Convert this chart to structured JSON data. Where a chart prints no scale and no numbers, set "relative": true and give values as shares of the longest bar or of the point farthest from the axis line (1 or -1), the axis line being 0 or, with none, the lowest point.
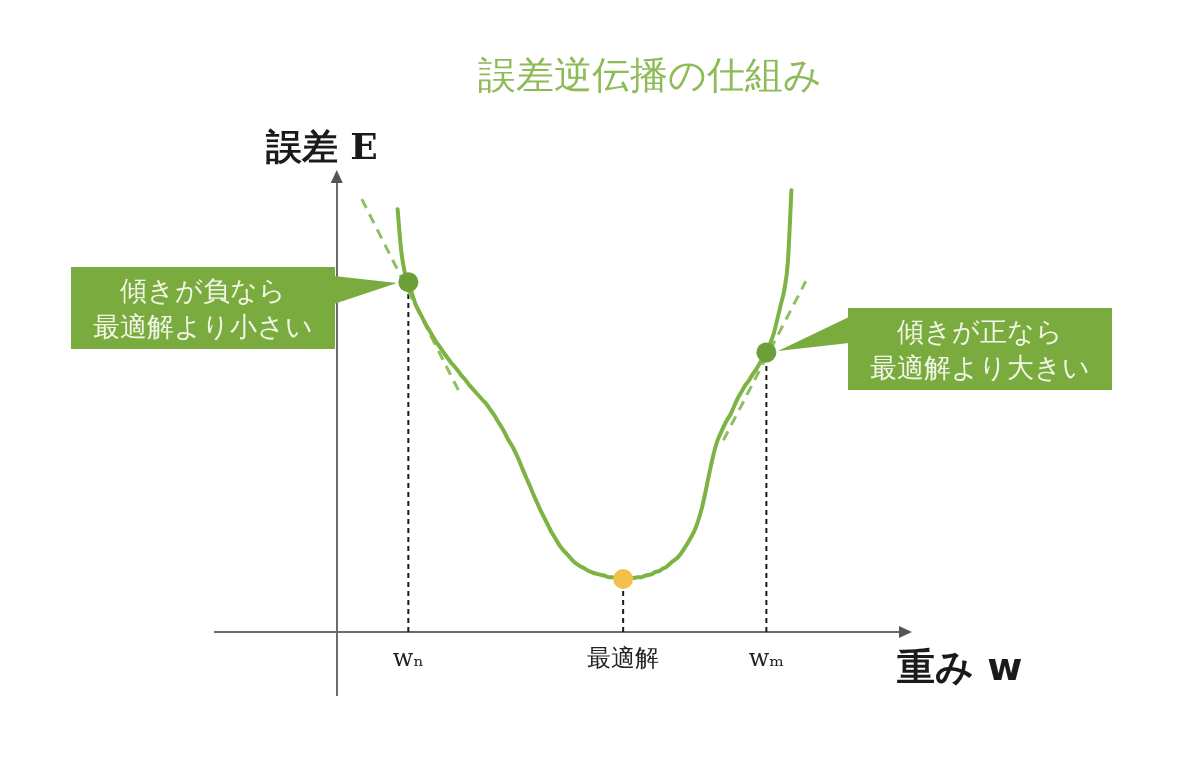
{
  "chart_data": {
    "type": "line",
    "title": "誤差逆伝播の仕組み",
    "xlabel": "重み w",
    "ylabel": "誤差 E",
    "relative": true,
    "categories": [
      null,
      null,
      null,
      null,
      null,
      null,
      null,
      null,
      null,
      null,
      null,
      null,
      null,
      null,
      null,
      null,
      null,
      null,
      null,
      null,
      null,
      null,
      null,
      null,
      null,
      null,
      null,
      null,
      null,
      null,
      null,
      null,
      null,
      null,
      null,
      null,
      null,
      null,
      null,
      null,
      null,
      null,
      null,
      null,
      null,
      null,
      null,
      null,
      null,
      null,
      null,
      null,
      null,
      null,
      "wₙ",
      null,
      null,
      null,
      null,
      null,
      null,
      null,
      null,
      null,
      null,
      null,
      null,
      null,
      null,
      null,
      null,
      null,
      null,
      null,
      null,
      null,
      null,
      null,
      null,
      null,
      null,
      null,
      null,
      null,
      null,
      null,
      null,
      null,
      null,
      null,
      null,
      null,
      null,
      null,
      null,
      null,
      null,
      null,
      null,
      null,
      null,
      null,
      null,
      null,
      null,
      null,
      null,
      null,
      null,
      null,
      null,
      null,
      null,
      null,
      "最適解",
      null,
      null,
      null,
      null,
      null,
      null,
      null,
      null,
      null,
      null,
      null,
      null,
      null,
      null,
      null,
      null,
      null,
      null,
      null,
      null,
      null,
      null,
      null,
      null,
      null,
      null,
      null,
      null,
      null,
      null,
      null,
      null,
      null,
      null,
      null,
      null,
      null,
      null,
      null,
      "wₘ",
      null,
      null,
      null,
      null,
      null,
      null,
      null,
      null,
      null,
      null,
      null,
      null,
      null,
      null,
      null,
      null,
      null,
      null,
      null,
      null,
      null,
      null,
      null,
      null,
      null,
      null,
      null,
      null,
      null,
      null,
      null,
      null,
      null,
      null,
      null,
      null,
      null,
      null,
      null
    ],
    "series": [
      {
        "type": "line",
        "color": "#7db343",
        "values": [
          null,
          null,
          null,
          null,
          null,
          null,
          null,
          null,
          null,
          null,
          null,
          null,
          null,
          null,
          null,
          null,
          null,
          null,
          null,
          null,
          null,
          null,
          null,
          null,
          null,
          null,
          null,
          null,
          null,
          null,
          null,
          null,
          null,
          null,
          null,
          null,
          null,
          null,
          null,
          null,
          null,
          null,
          null,
          null,
          null,
          null,
          null,
          null,
          null,
          null,
          null,
          0.957,
          0.864,
          0.814,
          0.792,
          0.767,
          0.742,
          0.726,
          0.71,
          0.695,
          0.681,
          0.667,
          0.654,
          0.643,
          0.631,
          0.62,
          0.609,
          0.6,
          0.59,
          0.579,
          0.57,
          0.559,
          0.55,
          0.541,
          0.532,
          0.523,
          0.514,
          0.502,
          0.491,
          0.477,
          0.464,
          0.45,
          0.434,
          0.421,
          0.405,
          0.387,
          0.367,
          0.348,
          0.33,
          0.31,
          0.292,
          0.274,
          0.258,
          0.242,
          0.226,
          0.213,
          0.199,
          0.188,
          0.179,
          0.17,
          0.161,
          0.154,
          0.149,
          0.145,
          0.14,
          0.136,
          0.133,
          0.131,
          0.129,
          0.127,
          0.124,
          0.124,
          0.122,
          null,
          null,
          null,
          0.122,
          0.122,
          0.124,
          0.124,
          0.127,
          0.129,
          0.131,
          0.136,
          0.138,
          0.143,
          0.147,
          0.154,
          0.161,
          0.167,
          0.176,
          0.188,
          0.201,
          0.215,
          0.231,
          0.253,
          0.281,
          0.317,
          0.357,
          0.394,
          0.425,
          0.446,
          0.464,
          0.48,
          0.493,
          0.511,
          0.529,
          0.543,
          0.557,
          0.568,
          0.581,
          0.593,
          0.606,
          0.62,
          0.633,
          0.652,
          0.674,
          0.706,
          0.74,
          0.774,
          0.837,
          1,
          null,
          null,
          null,
          null,
          null,
          null,
          null,
          null,
          null,
          null,
          null,
          null,
          null,
          null,
          null,
          null,
          null,
          null,
          null,
          null,
          null,
          null,
          null,
          null,
          null,
          null,
          null,
          null,
          null,
          null,
          null,
          null
        ]
      },
      {
        "type": "line",
        "line_style": "dashed",
        "color": "#8fc05e",
        "values": [
          null,
          null,
          null,
          null,
          null,
          null,
          null,
          null,
          null,
          null,
          null,
          null,
          null,
          null,
          null,
          null,
          null,
          null,
          null,
          null,
          null,
          null,
          null,
          null,
          null,
          null,
          null,
          null,
          null,
          null,
          null,
          null,
          null,
          null,
          null,
          null,
          null,
          null,
          null,
          null,
          null,
          0.98,
          0.964,
          0.948,
          0.932,
          0.916,
          0.9,
          0.884,
          0.868,
          0.852,
          0.836,
          0.82,
          0.804,
          0.788,
          0.772,
          0.756,
          0.74,
          0.723,
          0.707,
          0.691,
          0.675,
          0.659,
          0.643,
          0.627,
          0.611,
          0.595,
          0.579,
          0.563,
          0.547,
          null,
          null,
          null,
          null,
          null,
          null,
          null,
          null,
          null,
          null,
          null,
          null,
          null,
          null,
          null,
          null,
          null,
          null,
          null,
          null,
          null,
          null,
          null,
          null,
          null,
          null,
          null,
          null,
          null,
          null,
          null,
          null,
          null,
          null,
          null,
          null,
          null,
          null,
          null,
          null,
          null,
          null,
          null,
          null,
          null,
          null,
          null,
          null,
          null,
          null,
          null,
          null,
          null,
          null,
          null,
          null,
          null,
          null,
          null,
          null,
          null,
          null,
          null,
          null,
          null,
          null,
          null,
          null,
          null,
          null,
          null,
          null,
          null,
          null,
          null,
          null,
          null,
          null,
          null,
          null,
          null,
          null,
          null,
          null,
          null,
          null,
          null,
          null,
          null,
          null,
          null,
          null,
          null,
          null,
          null,
          null,
          null,
          null,
          null,
          null,
          null,
          null,
          null,
          null,
          null,
          null,
          null,
          null,
          null,
          null,
          null,
          null,
          null,
          null,
          null,
          null,
          null,
          null,
          null,
          null,
          null,
          null,
          null,
          null,
          null
        ]
      },
      {
        "type": "line",
        "line_style": "dashed",
        "color": "#8fc05e",
        "values": [
          null,
          null,
          null,
          null,
          null,
          null,
          null,
          null,
          null,
          null,
          null,
          null,
          null,
          null,
          null,
          null,
          null,
          null,
          null,
          null,
          null,
          null,
          null,
          null,
          null,
          null,
          null,
          null,
          null,
          null,
          null,
          null,
          null,
          null,
          null,
          null,
          null,
          null,
          null,
          null,
          null,
          null,
          null,
          null,
          null,
          null,
          null,
          null,
          null,
          null,
          null,
          null,
          null,
          null,
          null,
          null,
          null,
          null,
          null,
          null,
          null,
          null,
          null,
          null,
          null,
          null,
          null,
          null,
          null,
          null,
          null,
          null,
          null,
          null,
          null,
          null,
          null,
          null,
          null,
          null,
          null,
          null,
          null,
          null,
          null,
          null,
          null,
          null,
          null,
          null,
          null,
          null,
          null,
          null,
          null,
          null,
          null,
          null,
          null,
          null,
          null,
          null,
          null,
          null,
          null,
          null,
          null,
          null,
          null,
          null,
          null,
          null,
          null,
          null,
          null,
          null,
          null,
          null,
          null,
          null,
          null,
          null,
          null,
          null,
          null,
          null,
          null,
          null,
          null,
          null,
          null,
          null,
          null,
          null,
          null,
          null,
          null,
          null,
          null,
          null,
          null,
          null,
          0.434,
          0.45,
          0.466,
          0.481,
          0.497,
          0.512,
          0.528,
          0.544,
          0.559,
          0.575,
          0.591,
          0.606,
          0.622,
          0.637,
          0.653,
          0.669,
          0.684,
          0.7,
          0.716,
          0.731,
          0.747,
          0.762,
          0.778,
          0.794,
          null,
          null,
          null,
          null,
          null,
          null,
          null,
          null,
          null,
          null,
          null,
          null,
          null,
          null,
          null,
          null,
          null,
          null,
          null,
          null,
          null,
          null,
          null,
          null,
          null,
          null,
          null,
          null
        ]
      },
      {
        "type": "lollipop",
        "marker": "circle",
        "line_style": "dashed",
        "x": [
          "wₙ",
          "最適解",
          "wₘ"
        ],
        "values": [
          0.792,
          0.12,
          0.633
        ],
        "colors": [
          "#6d9f39",
          "#f3c14b",
          "#6d9f39"
        ]
      }
    ],
    "annotations": [
      "傾きが負なら最適解より小さい",
      "傾きが正なら最適解より大きい"
    ]
  }
}
